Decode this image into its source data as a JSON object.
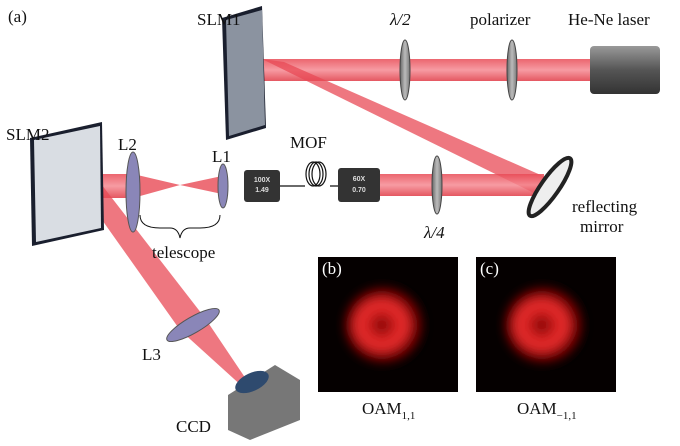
{
  "panel_label": "(a)",
  "components": {
    "slm1": "SLM1",
    "half_wave": "λ/2",
    "polarizer": "polarizer",
    "laser": "He-Ne laser",
    "slm2": "SLM2",
    "l2": "L2",
    "l1": "L1",
    "mof": "MOF",
    "obj1_mag": "100X",
    "obj1_na": "1.49",
    "obj2_mag": "60X",
    "obj2_na": "0.70",
    "mirror_line1": "reflecting",
    "mirror_line2": "mirror",
    "quarter_wave": "λ/4",
    "telescope": "telescope",
    "l3": "L3",
    "ccd": "CCD"
  },
  "insets": [
    {
      "label": "(b)",
      "caption": "OAM",
      "subscript": "1,1"
    },
    {
      "label": "(c)",
      "caption": "OAM",
      "subscript": "−1,1"
    }
  ]
}
